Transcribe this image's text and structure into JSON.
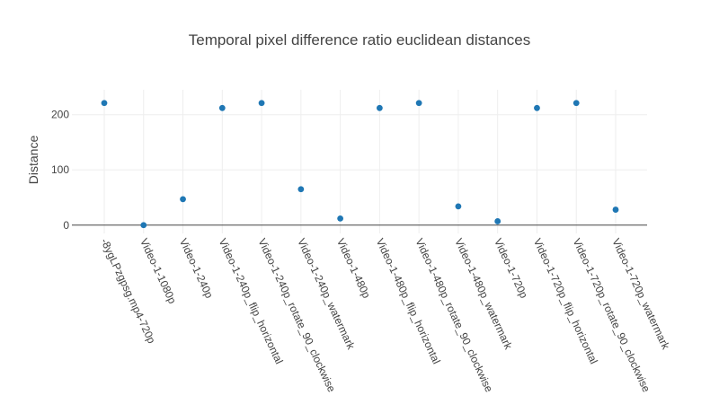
{
  "chart_data": {
    "type": "scatter",
    "title": "Temporal pixel difference ratio euclidean distances",
    "xlabel": "",
    "ylabel": "Distance",
    "ylim": [
      -15,
      245
    ],
    "yticks": [
      0,
      100,
      200
    ],
    "grid": true,
    "legend": "none",
    "color": "#1f77b4",
    "categories": [
      "-8ygLPzgpsg.mp4-720p",
      "Video-1-1080p",
      "Video-1-240p",
      "Video-1-240p_flip_horizontal",
      "Video-1-240p_rotate_90_clockwise",
      "Video-1-240p_watermark",
      "Video-1-480p",
      "Video-1-480p_flip_horizontal",
      "Video-1-480p_rotate_90_clockwise",
      "Video-1-480p_watermark",
      "Video-1-720p",
      "Video-1-720p_flip_horizontal",
      "Video-1-720p_rotate_90_clockwise",
      "Video-1-720p_watermark"
    ],
    "values": [
      221,
      0,
      47,
      212,
      221,
      65,
      12,
      212,
      221,
      34,
      7,
      212,
      221,
      28
    ]
  }
}
